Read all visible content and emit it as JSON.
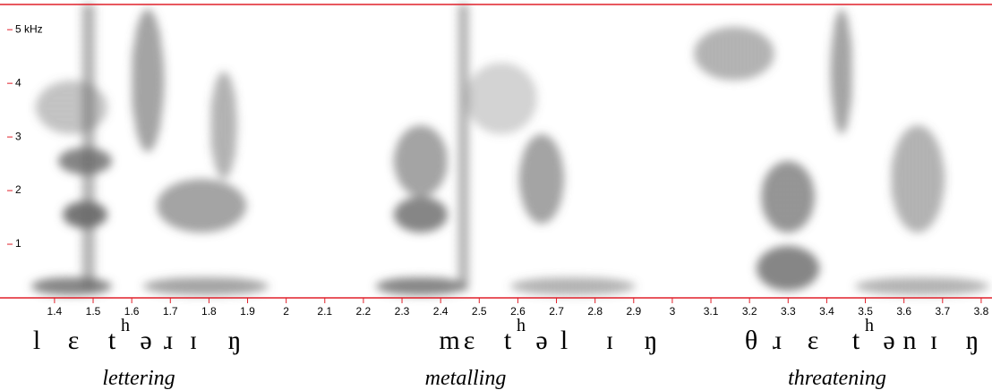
{
  "chart_data": {
    "type": "spectrogram",
    "xlim": [
      1.282,
      3.828
    ],
    "xticks": [
      1.4,
      1.5,
      1.6,
      1.7,
      1.8,
      1.9,
      2,
      2.1,
      2.2,
      2.3,
      2.4,
      2.5,
      2.6,
      2.7,
      2.8,
      2.9,
      3,
      3.1,
      3.2,
      3.3,
      3.4,
      3.5,
      3.6,
      3.7,
      3.8
    ],
    "ylim": [
      0,
      5.47
    ],
    "yticks": [
      1,
      2,
      3,
      4,
      {
        "value": 5,
        "label": "5 kHz"
      }
    ],
    "axis_color": "#e0202a",
    "words": [
      {
        "phones": [
          "l",
          "ɛ",
          "t",
          "h",
          "ə",
          "ɹ",
          "ɪ",
          "ŋ"
        ],
        "gloss": "lettering"
      },
      {
        "phones": [
          "m",
          "ɛ",
          "t",
          "h",
          "ə",
          "l",
          "ɪ",
          "ŋ"
        ],
        "gloss": "metalling"
      },
      {
        "phones": [
          "θ",
          "ɹ",
          "ɛ",
          "t",
          "h",
          "ə",
          "n",
          "ɪ",
          "ŋ"
        ],
        "gloss": "threatening"
      }
    ]
  }
}
